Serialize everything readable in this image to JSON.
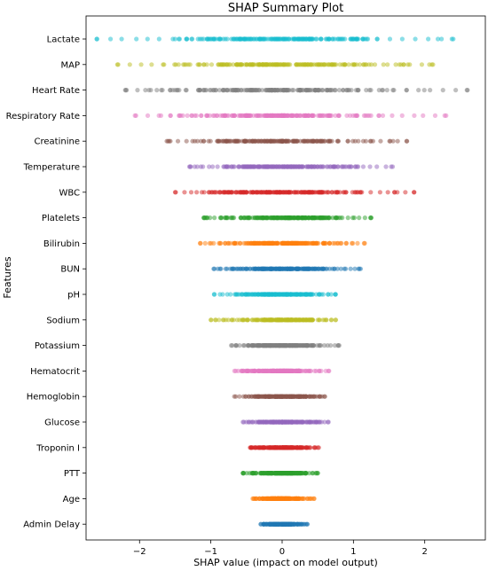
{
  "chart_data": {
    "type": "scatter",
    "title": "SHAP Summary Plot",
    "xlabel": "SHAP value (impact on model output)",
    "ylabel": "Features",
    "xlim": [
      -2.75,
      2.85
    ],
    "xticks": [
      -2,
      -1,
      0,
      1,
      2
    ],
    "xtick_labels": [
      "−2",
      "−1",
      "0",
      "1",
      "2"
    ],
    "grid": false,
    "features": [
      {
        "name": "Lactate",
        "color": "#17becf",
        "range": [
          -2.6,
          2.4
        ],
        "spread": 1.05
      },
      {
        "name": "MAP",
        "color": "#bcbd22",
        "range": [
          -2.3,
          2.1
        ],
        "spread": 0.95
      },
      {
        "name": "Heart Rate",
        "color": "#7f7f7f",
        "range": [
          -2.2,
          2.6
        ],
        "spread": 0.95
      },
      {
        "name": "Respiratory Rate",
        "color": "#e377c2",
        "range": [
          -2.05,
          2.3
        ],
        "spread": 0.9
      },
      {
        "name": "Creatinine",
        "color": "#8c564b",
        "range": [
          -1.6,
          1.75
        ],
        "spread": 0.75
      },
      {
        "name": "Temperature",
        "color": "#9467bd",
        "range": [
          -1.3,
          1.55
        ],
        "spread": 0.65
      },
      {
        "name": "WBC",
        "color": "#d62728",
        "range": [
          -1.5,
          1.85
        ],
        "spread": 0.7
      },
      {
        "name": "Platelets",
        "color": "#2ca02c",
        "range": [
          -1.1,
          1.25
        ],
        "spread": 0.55
      },
      {
        "name": "Bilirubin",
        "color": "#ff7f0e",
        "range": [
          -1.15,
          1.15
        ],
        "spread": 0.55
      },
      {
        "name": "BUN",
        "color": "#1f77b4",
        "range": [
          -0.95,
          1.1
        ],
        "spread": 0.5
      },
      {
        "name": "pH",
        "color": "#17becf",
        "range": [
          -0.95,
          0.75
        ],
        "spread": 0.42
      },
      {
        "name": "Sodium",
        "color": "#bcbd22",
        "range": [
          -1.0,
          0.75
        ],
        "spread": 0.4
      },
      {
        "name": "Potassium",
        "color": "#7f7f7f",
        "range": [
          -0.7,
          0.8
        ],
        "spread": 0.35
      },
      {
        "name": "Hematocrit",
        "color": "#e377c2",
        "range": [
          -0.65,
          0.65
        ],
        "spread": 0.32
      },
      {
        "name": "Hemoglobin",
        "color": "#8c564b",
        "range": [
          -0.65,
          0.6
        ],
        "spread": 0.3
      },
      {
        "name": "Glucose",
        "color": "#9467bd",
        "range": [
          -0.55,
          0.65
        ],
        "spread": 0.28
      },
      {
        "name": "Troponin I",
        "color": "#d62728",
        "range": [
          -0.45,
          0.5
        ],
        "spread": 0.25
      },
      {
        "name": "PTT",
        "color": "#2ca02c",
        "range": [
          -0.55,
          0.5
        ],
        "spread": 0.25
      },
      {
        "name": "Age",
        "color": "#ff7f0e",
        "range": [
          -0.4,
          0.45
        ],
        "spread": 0.2
      },
      {
        "name": "Admin Delay",
        "color": "#1f77b4",
        "range": [
          -0.3,
          0.35
        ],
        "spread": 0.15
      }
    ]
  }
}
